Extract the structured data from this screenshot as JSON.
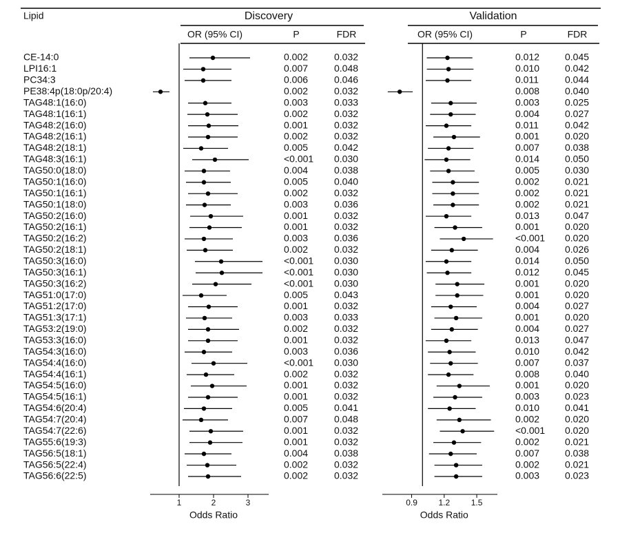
{
  "chart_data": {
    "type": "forest",
    "lipid_header": "Lipid",
    "lipids": [
      "CE-14:0",
      "LPI16:1",
      "PC34:3",
      "PE38:4p(18:0p/20:4)",
      "TAG48:1(16:0)",
      "TAG48:1(16:1)",
      "TAG48:2(16:0)",
      "TAG48:2(16:1)",
      "TAG48:2(18:1)",
      "TAG48:3(16:1)",
      "TAG50:0(18:0)",
      "TAG50:1(16:0)",
      "TAG50:1(16:1)",
      "TAG50:1(18:0)",
      "TAG50:2(16:0)",
      "TAG50:2(16:1)",
      "TAG50:2(16:2)",
      "TAG50:2(18:1)",
      "TAG50:3(16:0)",
      "TAG50:3(16:1)",
      "TAG50:3(16:2)",
      "TAG51:0(17:0)",
      "TAG51:2(17:0)",
      "TAG51:3(17:1)",
      "TAG53:2(19:0)",
      "TAG53:3(16:0)",
      "TAG54:3(16:0)",
      "TAG54:4(16:0)",
      "TAG54:4(16:1)",
      "TAG54:5(16:0)",
      "TAG54:5(16:1)",
      "TAG54:6(20:4)",
      "TAG54:7(20:4)",
      "TAG54:7(22:6)",
      "TAG55:6(19:3)",
      "TAG56:5(18:1)",
      "TAG56:5(22:4)",
      "TAG56:6(22:5)"
    ],
    "panels": [
      {
        "title": "Discovery",
        "col_or": "OR (95% CI)",
        "col_p": "P",
        "col_fdr": "FDR",
        "xlabel": "Odds Ratio",
        "color": "#000000",
        "xlim": [
          0.16,
          3.6
        ],
        "xticks": [
          1,
          2,
          3
        ],
        "refline": 1,
        "or": [
          1.98,
          1.7,
          1.7,
          0.46,
          1.76,
          1.82,
          1.86,
          1.84,
          1.64,
          2.04,
          1.72,
          1.72,
          1.84,
          1.74,
          1.92,
          1.88,
          1.72,
          1.76,
          2.22,
          2.24,
          2.06,
          1.64,
          1.86,
          1.74,
          1.84,
          1.84,
          1.72,
          2.0,
          1.78,
          1.96,
          1.84,
          1.72,
          1.64,
          1.92,
          1.9,
          1.72,
          1.82,
          1.84
        ],
        "lower": [
          1.3,
          1.12,
          1.16,
          0.24,
          1.26,
          1.24,
          1.26,
          1.26,
          1.12,
          1.38,
          1.16,
          1.2,
          1.26,
          1.2,
          1.32,
          1.3,
          1.16,
          1.22,
          1.46,
          1.48,
          1.38,
          1.1,
          1.26,
          1.2,
          1.26,
          1.26,
          1.16,
          1.36,
          1.22,
          1.34,
          1.26,
          1.14,
          1.1,
          1.3,
          1.3,
          1.16,
          1.22,
          1.26
        ],
        "upper": [
          3.06,
          2.52,
          2.52,
          0.72,
          2.52,
          2.7,
          2.72,
          2.7,
          2.42,
          3.02,
          2.48,
          2.5,
          2.7,
          2.5,
          2.86,
          2.82,
          2.56,
          2.56,
          3.42,
          3.42,
          3.1,
          2.38,
          2.7,
          2.54,
          2.74,
          2.7,
          2.54,
          2.98,
          2.6,
          2.96,
          2.7,
          2.54,
          2.42,
          2.86,
          2.84,
          2.52,
          2.66,
          2.8
        ],
        "p": [
          "0.002",
          "0.007",
          "0.006",
          "0.002",
          "0.003",
          "0.002",
          "0.001",
          "0.002",
          "0.005",
          "<0.001",
          "0.004",
          "0.005",
          "0.002",
          "0.003",
          "0.001",
          "0.001",
          "0.003",
          "0.002",
          "<0.001",
          "<0.001",
          "<0.001",
          "0.005",
          "0.001",
          "0.003",
          "0.002",
          "0.001",
          "0.003",
          "<0.001",
          "0.002",
          "0.001",
          "0.001",
          "0.005",
          "0.007",
          "0.001",
          "0.001",
          "0.004",
          "0.002",
          "0.002"
        ],
        "fdr": [
          "0.032",
          "0.048",
          "0.046",
          "0.032",
          "0.033",
          "0.032",
          "0.032",
          "0.032",
          "0.042",
          "0.030",
          "0.038",
          "0.040",
          "0.032",
          "0.036",
          "0.032",
          "0.032",
          "0.036",
          "0.032",
          "0.030",
          "0.030",
          "0.030",
          "0.043",
          "0.032",
          "0.033",
          "0.032",
          "0.032",
          "0.036",
          "0.030",
          "0.032",
          "0.032",
          "0.032",
          "0.041",
          "0.048",
          "0.032",
          "0.032",
          "0.038",
          "0.032",
          "0.032"
        ]
      },
      {
        "title": "Validation",
        "col_or": "OR (95% CI)",
        "col_p": "P",
        "col_fdr": "FDR",
        "xlabel": "Odds Ratio",
        "color": "#000000",
        "xlim": [
          0.63,
          1.69
        ],
        "xticks": [
          0.9,
          1.2,
          1.5
        ],
        "refline": 1,
        "or": [
          1.23,
          1.24,
          1.23,
          0.79,
          1.26,
          1.26,
          1.22,
          1.29,
          1.24,
          1.22,
          1.24,
          1.28,
          1.28,
          1.28,
          1.22,
          1.3,
          1.38,
          1.27,
          1.22,
          1.23,
          1.32,
          1.32,
          1.26,
          1.31,
          1.27,
          1.22,
          1.25,
          1.26,
          1.24,
          1.34,
          1.3,
          1.25,
          1.34,
          1.37,
          1.29,
          1.26,
          1.31,
          1.31
        ],
        "lower": [
          1.04,
          1.04,
          1.03,
          0.68,
          1.08,
          1.07,
          1.03,
          1.1,
          1.05,
          1.02,
          1.07,
          1.09,
          1.09,
          1.1,
          1.03,
          1.11,
          1.16,
          1.08,
          1.03,
          1.04,
          1.12,
          1.12,
          1.08,
          1.11,
          1.08,
          1.03,
          1.05,
          1.07,
          1.05,
          1.13,
          1.1,
          1.05,
          1.13,
          1.16,
          1.1,
          1.06,
          1.11,
          1.11
        ],
        "upper": [
          1.46,
          1.47,
          1.45,
          0.91,
          1.5,
          1.49,
          1.45,
          1.53,
          1.47,
          1.44,
          1.48,
          1.52,
          1.52,
          1.52,
          1.45,
          1.55,
          1.65,
          1.51,
          1.45,
          1.45,
          1.57,
          1.56,
          1.5,
          1.55,
          1.51,
          1.45,
          1.49,
          1.51,
          1.47,
          1.62,
          1.55,
          1.49,
          1.63,
          1.66,
          1.54,
          1.5,
          1.55,
          1.55
        ],
        "p": [
          "0.012",
          "0.010",
          "0.011",
          "0.008",
          "0.003",
          "0.004",
          "0.011",
          "0.001",
          "0.007",
          "0.014",
          "0.005",
          "0.002",
          "0.002",
          "0.002",
          "0.013",
          "0.001",
          "<0.001",
          "0.004",
          "0.014",
          "0.012",
          "0.001",
          "0.001",
          "0.004",
          "0.001",
          "0.004",
          "0.013",
          "0.010",
          "0.007",
          "0.008",
          "0.001",
          "0.003",
          "0.010",
          "0.002",
          "<0.001",
          "0.002",
          "0.007",
          "0.002",
          "0.003"
        ],
        "fdr": [
          "0.045",
          "0.042",
          "0.044",
          "0.040",
          "0.025",
          "0.027",
          "0.042",
          "0.020",
          "0.038",
          "0.050",
          "0.030",
          "0.021",
          "0.021",
          "0.021",
          "0.047",
          "0.020",
          "0.020",
          "0.026",
          "0.050",
          "0.045",
          "0.020",
          "0.020",
          "0.027",
          "0.020",
          "0.027",
          "0.047",
          "0.042",
          "0.037",
          "0.040",
          "0.020",
          "0.023",
          "0.041",
          "0.020",
          "0.020",
          "0.021",
          "0.038",
          "0.021",
          "0.023"
        ]
      }
    ]
  }
}
